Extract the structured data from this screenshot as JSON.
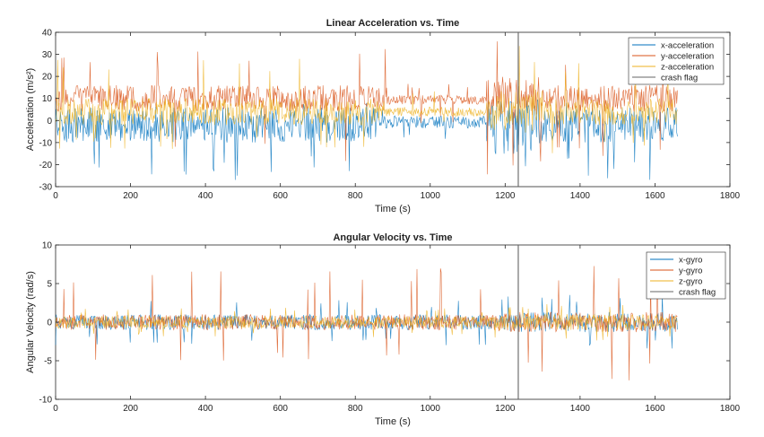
{
  "chart_data": [
    {
      "type": "line",
      "title": "Linear Acceleration vs. Time",
      "xlabel": "Time (s)",
      "ylabel": "Acceleration (m/s²)",
      "xlim": [
        0,
        1800
      ],
      "ylim": [
        -30,
        40
      ],
      "xticks": [
        0,
        200,
        400,
        600,
        800,
        1000,
        1200,
        1400,
        1600,
        1800
      ],
      "yticks": [
        -30,
        -20,
        -10,
        0,
        10,
        20,
        30,
        40
      ],
      "legend_position": "top-right",
      "crash_time": 1235,
      "series": [
        {
          "name": "x-acceleration",
          "color": "#0072BD",
          "approx_mean": 0,
          "approx_noise_range": [
            -10,
            6
          ],
          "approx_peak_range": [
            -27,
            8
          ]
        },
        {
          "name": "y-acceleration",
          "color": "#D95319",
          "approx_mean": 9,
          "approx_noise_range": [
            4,
            16
          ],
          "approx_peak_range": [
            -20,
            33
          ]
        },
        {
          "name": "z-acceleration",
          "color": "#EDB120",
          "approx_mean": 4,
          "approx_noise_range": [
            -2,
            10
          ],
          "approx_peak_range": [
            -15,
            33
          ]
        },
        {
          "name": "crash flag",
          "color": "#666666",
          "vertical_line_at": 1235
        }
      ]
    },
    {
      "type": "line",
      "title": "Angular Velocity vs. Time",
      "xlabel": "Time (s)",
      "ylabel": "Angular Velocity (rad/s)",
      "xlim": [
        0,
        1800
      ],
      "ylim": [
        -10,
        10
      ],
      "xticks": [
        0,
        200,
        400,
        600,
        800,
        1000,
        1200,
        1400,
        1600,
        1800
      ],
      "yticks": [
        -10,
        -5,
        0,
        5,
        10
      ],
      "legend_position": "top-right",
      "crash_time": 1235,
      "series": [
        {
          "name": "x-gyro",
          "color": "#0072BD",
          "approx_mean": 0,
          "approx_noise_range": [
            -1,
            1
          ],
          "approx_peak_range": [
            -3,
            3
          ]
        },
        {
          "name": "y-gyro",
          "color": "#D95319",
          "approx_mean": 0,
          "approx_noise_range": [
            -1,
            1
          ],
          "approx_peak_range": [
            -6.5,
            7
          ]
        },
        {
          "name": "z-gyro",
          "color": "#EDB120",
          "approx_mean": 0,
          "approx_noise_range": [
            -0.8,
            0.8
          ],
          "approx_peak_range": [
            -2,
            2
          ]
        },
        {
          "name": "crash flag",
          "color": "#666666",
          "vertical_line_at": 1235
        }
      ]
    }
  ]
}
